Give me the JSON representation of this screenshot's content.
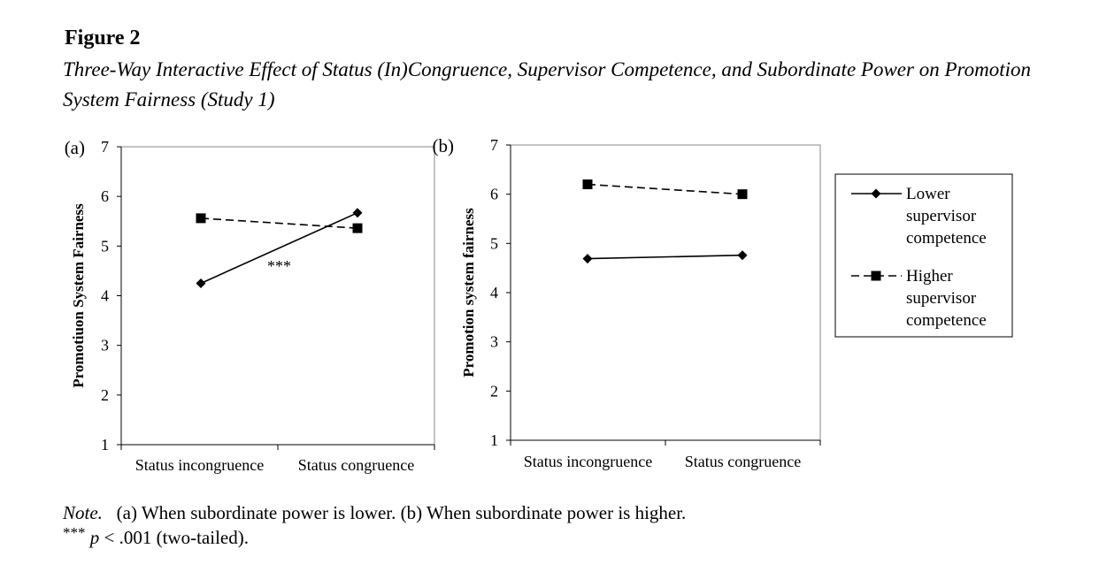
{
  "figure": {
    "label": "Figure 2",
    "title": "Three-Way Interactive Effect of Status (In)Congruence, Supervisor Competence, and Subordinate Power on Promotion System Fairness (Study 1)"
  },
  "note": {
    "lead": "Note.",
    "line1": "(a) When subordinate power is lower. (b) When subordinate power is higher.",
    "line2_stars": "***",
    "line2_p": "p",
    "line2_rest": "< .001 (two-tailed)."
  },
  "legend": {
    "position": "right",
    "entries": [
      {
        "lines": [
          "Lower",
          "supervisor",
          "competence"
        ],
        "marker": "diamond",
        "line_style": "solid",
        "color": "#000000"
      },
      {
        "lines": [
          "Higher",
          "supervisor",
          "competence"
        ],
        "marker": "square",
        "line_style": "dashed",
        "color": "#000000"
      }
    ]
  },
  "chart_data": [
    {
      "type": "line",
      "panel": "(a)",
      "ylabel": "Promotiuon System Fairness",
      "ylim": [
        1,
        7
      ],
      "yticks": [
        1,
        2,
        3,
        4,
        5,
        6,
        7
      ],
      "categories": [
        "Status incongruence",
        "Status congruence"
      ],
      "series": [
        {
          "name": "Lower supervisor competence",
          "values": [
            4.25,
            5.67
          ],
          "marker": "diamond",
          "line_style": "solid"
        },
        {
          "name": "Higher supervisor competence",
          "values": [
            5.56,
            5.36
          ],
          "marker": "square",
          "line_style": "dashed"
        }
      ],
      "annotations": [
        {
          "text": "***",
          "x": 0.5,
          "y": 4.6
        }
      ],
      "grid": false
    },
    {
      "type": "line",
      "panel": "(b)",
      "ylabel": "Promotion system fairness",
      "ylim": [
        1,
        7
      ],
      "yticks": [
        1,
        2,
        3,
        4,
        5,
        6,
        7
      ],
      "categories": [
        "Status incongruence",
        "Status congruence"
      ],
      "series": [
        {
          "name": "Lower supervisor competence",
          "values": [
            4.69,
            4.76
          ],
          "marker": "diamond",
          "line_style": "solid"
        },
        {
          "name": "Higher supervisor competence",
          "values": [
            6.2,
            6.0
          ],
          "marker": "square",
          "line_style": "dashed"
        }
      ],
      "annotations": [],
      "grid": false
    }
  ]
}
